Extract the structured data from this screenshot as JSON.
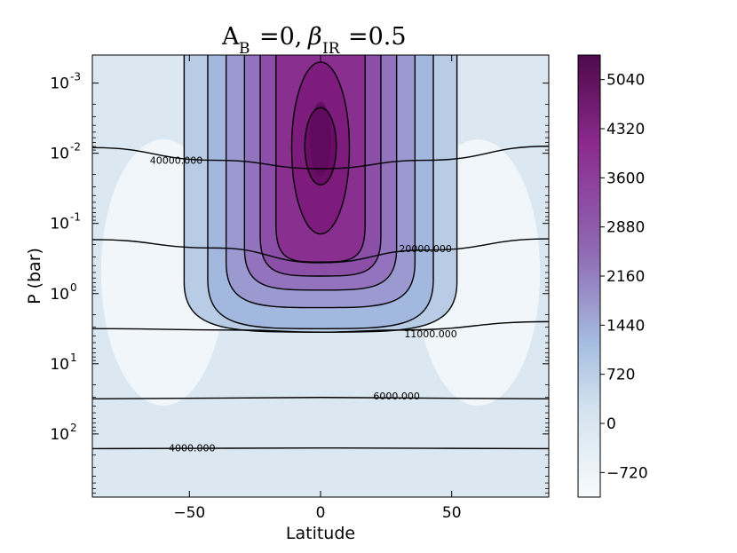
{
  "chart_data": {
    "type": "heatmap",
    "title_parts": {
      "a_symbol": "A",
      "a_sub": "B",
      "a_val": "=0,",
      "beta_symbol": "β",
      "beta_sub": "IR",
      "beta_val": "=0.5"
    },
    "xlabel": "Latitude",
    "ylabel": "P (bar)",
    "xlim": [
      -87,
      87
    ],
    "ylim_log10": [
      -3.4,
      2.9
    ],
    "y_scale": "log, inverted (low pressure at top)",
    "x_ticks": [
      {
        "value": -50,
        "label": "−50"
      },
      {
        "value": 0,
        "label": "0"
      },
      {
        "value": 50,
        "label": "50"
      }
    ],
    "y_ticks": [
      {
        "exp": -3,
        "base": "10",
        "sup": "-3"
      },
      {
        "exp": -2,
        "base": "10",
        "sup": "-2"
      },
      {
        "exp": -1,
        "base": "10",
        "sup": "-1"
      },
      {
        "exp": 0,
        "base": "10",
        "sup": "0"
      },
      {
        "exp": 1,
        "base": "10",
        "sup": "1"
      },
      {
        "exp": 2,
        "base": "10",
        "sup": "2"
      }
    ],
    "colorbar": {
      "min": -1080,
      "max": 5400,
      "ticks": [
        {
          "value": -720,
          "label": "−720"
        },
        {
          "value": 0,
          "label": "0"
        },
        {
          "value": 720,
          "label": "720"
        },
        {
          "value": 1440,
          "label": "1440"
        },
        {
          "value": 2160,
          "label": "2160"
        },
        {
          "value": 2880,
          "label": "2880"
        },
        {
          "value": 3600,
          "label": "3600"
        },
        {
          "value": 4320,
          "label": "4320"
        },
        {
          "value": 5040,
          "label": "5040"
        }
      ],
      "colors": [
        "#f7fbfd",
        "#c4d8e8",
        "#8ea9d3",
        "#8f63b0",
        "#8a2a8c",
        "#4e0a4a"
      ]
    },
    "contour_labels": [
      {
        "text": "40000.000",
        "lat": -55,
        "log10p": -1.9
      },
      {
        "text": "20000.000",
        "lat": 40,
        "log10p": -0.64
      },
      {
        "text": "11000.000",
        "lat": 42,
        "log10p": 0.57
      },
      {
        "text": "6000.000",
        "lat": 29,
        "log10p": 1.46
      },
      {
        "text": "4000.000",
        "lat": -49,
        "log10p": 2.2
      }
    ],
    "horizontal_contours": [
      {
        "level": 40000,
        "points": [
          [
            -87,
            -2.08
          ],
          [
            -40,
            -1.9
          ],
          [
            0,
            -1.78
          ],
          [
            40,
            -1.9
          ],
          [
            87,
            -2.1
          ]
        ]
      },
      {
        "level": 20000,
        "points": [
          [
            -87,
            -0.77
          ],
          [
            -40,
            -0.65
          ],
          [
            0,
            -0.44
          ],
          [
            40,
            -0.62
          ],
          [
            87,
            -0.78
          ]
        ]
      },
      {
        "level": 11000,
        "points": [
          [
            -87,
            0.5
          ],
          [
            -30,
            0.52
          ],
          [
            0,
            0.55
          ],
          [
            30,
            0.52
          ],
          [
            87,
            0.4
          ]
        ]
      },
      {
        "level": 6000,
        "points": [
          [
            -87,
            1.5
          ],
          [
            0,
            1.48
          ],
          [
            87,
            1.5
          ]
        ]
      },
      {
        "level": 4000,
        "points": [
          [
            -87,
            2.21
          ],
          [
            0,
            2.2
          ],
          [
            87,
            2.21
          ]
        ]
      }
    ],
    "closed_contours": [
      {
        "half_width_deg": 52,
        "top_log10p": -3.4,
        "bottom_log10p": 0.55
      },
      {
        "half_width_deg": 43,
        "top_log10p": -3.4,
        "bottom_log10p": 0.5
      },
      {
        "half_width_deg": 36,
        "top_log10p": -3.4,
        "bottom_log10p": 0.2
      },
      {
        "half_width_deg": 29,
        "top_log10p": -3.4,
        "bottom_log10p": -0.05
      },
      {
        "half_width_deg": 23,
        "top_log10p": -3.4,
        "bottom_log10p": -0.25
      },
      {
        "half_width_deg": 17,
        "top_log10p": -3.4,
        "bottom_log10p": -0.45
      },
      {
        "half_width_deg": 11,
        "top_log10p": -3.3,
        "bottom_log10p": -0.85
      },
      {
        "half_width_deg": 6,
        "top_log10p": -2.65,
        "bottom_log10p": -1.55
      }
    ],
    "field_peak": {
      "lat": 0,
      "log10p": -2.2,
      "value": 5300
    },
    "grid": false,
    "legend": "colorbar right"
  }
}
